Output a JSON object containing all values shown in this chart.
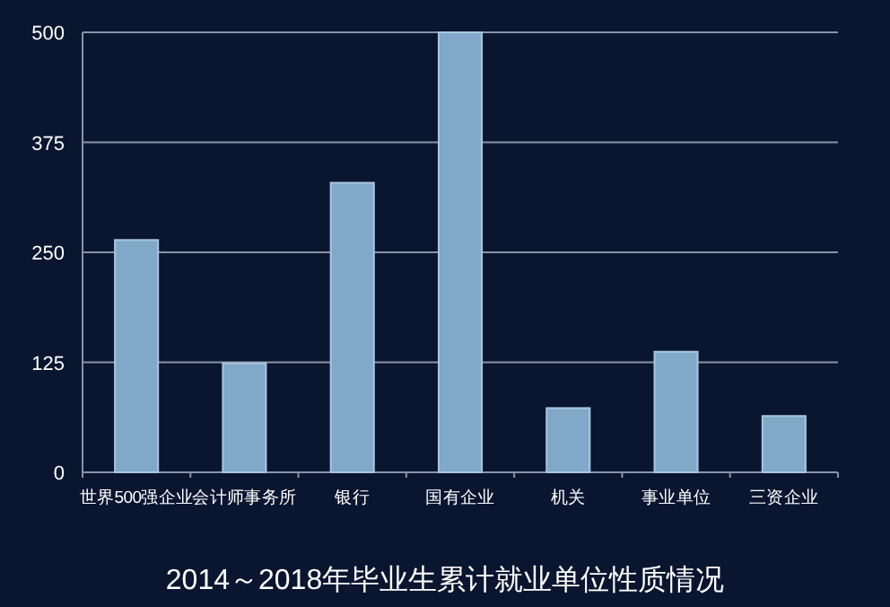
{
  "chart_data": {
    "type": "bar",
    "title": "2014～2018年毕业生累计就业单位性质情况",
    "categories": [
      "世界500强企业",
      "会计师事务所",
      "银行",
      "国有企业",
      "机关",
      "事业单位",
      "三资企业"
    ],
    "values": [
      264,
      124,
      329,
      500,
      73,
      137,
      64
    ],
    "color": "#80a9c9",
    "ylim": [
      0,
      500
    ],
    "yticks": [
      0,
      125,
      250,
      375,
      500
    ],
    "grid": "y"
  }
}
